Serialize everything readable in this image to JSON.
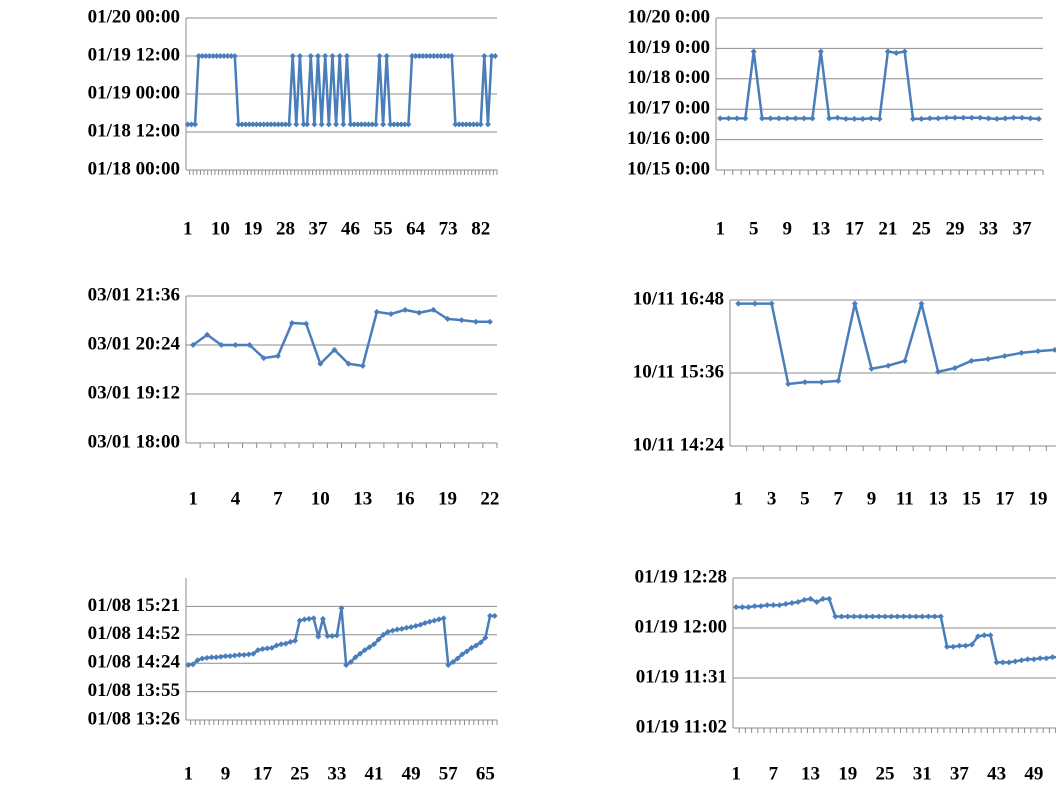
{
  "chart_data": [
    {
      "type": "line",
      "color": "#4a7ebb",
      "grid": true,
      "categories": [
        1,
        null,
        null,
        null,
        null,
        null,
        null,
        null,
        null,
        10,
        null,
        null,
        null,
        null,
        null,
        null,
        null,
        null,
        19,
        null,
        null,
        null,
        null,
        null,
        null,
        null,
        null,
        28,
        null,
        null,
        null,
        null,
        null,
        null,
        null,
        null,
        37,
        null,
        null,
        null,
        null,
        null,
        null,
        null,
        null,
        46,
        null,
        null,
        null,
        null,
        null,
        null,
        null,
        null,
        55,
        null,
        null,
        null,
        null,
        null,
        null,
        null,
        null,
        64,
        null,
        null,
        null,
        null,
        null,
        null,
        null,
        null,
        73,
        null,
        null,
        null,
        null,
        null,
        null,
        null,
        null,
        82,
        null,
        null,
        null,
        null
      ],
      "values": [
        18.6,
        18.6,
        18.6,
        19.5,
        19.5,
        19.5,
        19.5,
        19.5,
        19.5,
        19.5,
        19.5,
        19.5,
        19.5,
        19.5,
        18.6,
        18.6,
        18.6,
        18.6,
        18.6,
        18.6,
        18.6,
        18.6,
        18.6,
        18.6,
        18.6,
        18.6,
        18.6,
        18.6,
        18.6,
        19.5,
        18.6,
        19.5,
        18.6,
        18.6,
        19.5,
        18.6,
        19.5,
        18.6,
        19.5,
        18.6,
        19.5,
        18.6,
        19.5,
        18.6,
        19.5,
        18.6,
        18.6,
        18.6,
        18.6,
        18.6,
        18.6,
        18.6,
        18.6,
        19.5,
        18.6,
        19.5,
        18.6,
        18.6,
        18.6,
        18.6,
        18.6,
        18.6,
        19.5,
        19.5,
        19.5,
        19.5,
        19.5,
        19.5,
        19.5,
        19.5,
        19.5,
        19.5,
        19.5,
        19.5,
        18.6,
        18.6,
        18.6,
        18.6,
        18.6,
        18.6,
        18.6,
        18.6,
        19.5,
        18.6,
        19.5,
        19.5
      ],
      "ylim": [
        18,
        20
      ],
      "yticks": [
        {
          "value": 18,
          "label": "01/18 00:00"
        },
        {
          "value": 18.5,
          "label": "01/18 12:00"
        },
        {
          "value": 19,
          "label": "01/19 00:00"
        },
        {
          "value": 19.5,
          "label": "01/19 12:00"
        },
        {
          "value": 20,
          "label": "01/20 00:00"
        }
      ]
    },
    {
      "type": "line",
      "color": "#4a7ebb",
      "grid": true,
      "categories": [
        1,
        null,
        null,
        null,
        5,
        null,
        null,
        null,
        9,
        null,
        null,
        null,
        13,
        null,
        null,
        null,
        17,
        null,
        null,
        null,
        21,
        null,
        null,
        null,
        25,
        null,
        null,
        null,
        29,
        null,
        null,
        null,
        33,
        null,
        null,
        null,
        37,
        null,
        null
      ],
      "values": [
        16.7,
        16.7,
        16.7,
        16.7,
        18.9,
        16.7,
        16.7,
        16.7,
        16.7,
        16.7,
        16.7,
        16.7,
        18.9,
        16.7,
        16.72,
        16.68,
        16.68,
        16.68,
        16.7,
        16.68,
        18.9,
        18.85,
        18.9,
        16.68,
        16.68,
        16.7,
        16.7,
        16.72,
        16.72,
        16.72,
        16.72,
        16.72,
        16.7,
        16.68,
        16.7,
        16.72,
        16.72,
        16.7,
        16.68
      ],
      "ylim": [
        15,
        20
      ],
      "yticks": [
        {
          "value": 15,
          "label": "10/15 0:00"
        },
        {
          "value": 16,
          "label": "10/16 0:00"
        },
        {
          "value": 17,
          "label": "10/17 0:00"
        },
        {
          "value": 18,
          "label": "10/18 0:00"
        },
        {
          "value": 19,
          "label": "10/19 0:00"
        },
        {
          "value": 20,
          "label": "10/20 0:00"
        }
      ]
    },
    {
      "type": "line",
      "color": "#4a7ebb",
      "grid": true,
      "categories": [
        1,
        null,
        null,
        4,
        null,
        null,
        7,
        null,
        null,
        10,
        null,
        null,
        13,
        null,
        null,
        16,
        null,
        null,
        19,
        null,
        null,
        22
      ],
      "values": [
        20.4,
        20.65,
        20.4,
        20.4,
        20.4,
        20.08,
        20.13,
        20.94,
        20.92,
        19.94,
        20.28,
        19.94,
        19.89,
        21.21,
        21.16,
        21.26,
        21.19,
        21.26,
        21.04,
        21.01,
        20.97,
        20.97
      ],
      "ylim": [
        18,
        21.6
      ],
      "yticks": [
        {
          "value": 18,
          "label": "03/01 18:00"
        },
        {
          "value": 19.2,
          "label": "03/01 19:12"
        },
        {
          "value": 20.4,
          "label": "03/01 20:24"
        },
        {
          "value": 21.6,
          "label": "03/01 21:36"
        }
      ]
    },
    {
      "type": "line",
      "color": "#4a7ebb",
      "grid": true,
      "categories": [
        1,
        null,
        3,
        null,
        5,
        null,
        7,
        null,
        9,
        null,
        11,
        null,
        13,
        null,
        15,
        null,
        17,
        null,
        19,
        null
      ],
      "values": [
        16.74,
        16.74,
        16.74,
        15.42,
        15.45,
        15.45,
        15.47,
        16.74,
        15.67,
        15.72,
        15.8,
        16.74,
        15.62,
        15.68,
        15.8,
        15.83,
        15.88,
        15.93,
        15.96,
        15.98
      ],
      "ylim": [
        14.4,
        16.8
      ],
      "yticks": [
        {
          "value": 14.4,
          "label": "10/11 14:24"
        },
        {
          "value": 15.6,
          "label": "10/11 15:36"
        },
        {
          "value": 16.8,
          "label": "10/11 16:48"
        }
      ]
    },
    {
      "type": "line",
      "color": "#4a7ebb",
      "grid": true,
      "categories": [
        1,
        null,
        null,
        null,
        null,
        null,
        null,
        null,
        9,
        null,
        null,
        null,
        null,
        null,
        null,
        null,
        17,
        null,
        null,
        null,
        null,
        null,
        null,
        null,
        25,
        null,
        null,
        null,
        null,
        null,
        null,
        null,
        33,
        null,
        null,
        null,
        null,
        null,
        null,
        null,
        41,
        null,
        null,
        null,
        null,
        null,
        null,
        null,
        49,
        null,
        null,
        null,
        null,
        null,
        null,
        null,
        57,
        null,
        null,
        null,
        null,
        null,
        null,
        null,
        65,
        null,
        null
      ],
      "values": [
        14.37,
        14.38,
        14.45,
        14.48,
        14.49,
        14.5,
        14.5,
        14.51,
        14.52,
        14.52,
        14.53,
        14.54,
        14.54,
        14.55,
        14.56,
        14.62,
        14.64,
        14.65,
        14.66,
        14.7,
        14.72,
        14.73,
        14.76,
        14.78,
        15.12,
        15.14,
        15.15,
        15.16,
        14.85,
        15.15,
        14.86,
        14.86,
        14.87,
        15.33,
        14.37,
        14.42,
        14.5,
        14.56,
        14.62,
        14.67,
        14.72,
        14.8,
        14.88,
        14.93,
        14.95,
        14.97,
        14.98,
        15.0,
        15.01,
        15.03,
        15.05,
        15.08,
        15.1,
        15.12,
        15.14,
        15.16,
        14.37,
        14.42,
        14.48,
        14.55,
        14.6,
        14.66,
        14.7,
        14.75,
        14.83,
        15.2,
        15.2
      ],
      "ylim": [
        13.44,
        15.84
      ],
      "yticks": [
        {
          "value": 13.44,
          "label": "01/08 13:26"
        },
        {
          "value": 13.92,
          "label": "01/08 13:55"
        },
        {
          "value": 14.4,
          "label": "01/08 14:24"
        },
        {
          "value": 14.88,
          "label": "01/08 14:52"
        },
        {
          "value": 15.36,
          "label": "01/08 15:21"
        }
      ]
    },
    {
      "type": "line",
      "color": "#4a7ebb",
      "grid": true,
      "categories": [
        1,
        null,
        null,
        null,
        null,
        null,
        7,
        null,
        null,
        null,
        null,
        null,
        13,
        null,
        null,
        null,
        null,
        null,
        19,
        null,
        null,
        null,
        null,
        null,
        25,
        null,
        null,
        null,
        null,
        null,
        31,
        null,
        null,
        null,
        null,
        null,
        37,
        null,
        null,
        null,
        null,
        null,
        43,
        null,
        null,
        null,
        null,
        null,
        49,
        null,
        null,
        null,
        null,
        null
      ],
      "values": [
        12.2,
        12.2,
        12.2,
        12.21,
        12.21,
        12.22,
        12.22,
        12.22,
        12.23,
        12.24,
        12.25,
        12.27,
        12.28,
        12.25,
        12.28,
        12.28,
        12.11,
        12.11,
        12.11,
        12.11,
        12.11,
        12.11,
        12.11,
        12.11,
        12.11,
        12.11,
        12.11,
        12.11,
        12.11,
        12.11,
        12.11,
        12.11,
        12.11,
        12.11,
        11.82,
        11.82,
        11.83,
        11.83,
        11.84,
        11.92,
        11.93,
        11.93,
        11.67,
        11.67,
        11.67,
        11.68,
        11.69,
        11.7,
        11.7,
        11.71,
        11.71,
        11.72,
        11.72,
        11.73
      ],
      "ylim": [
        11.04,
        12.48
      ],
      "yticks": [
        {
          "value": 11.04,
          "label": "01/19 11:02"
        },
        {
          "value": 11.52,
          "label": "01/19 11:31"
        },
        {
          "value": 12.0,
          "label": "01/19 12:00"
        },
        {
          "value": 12.48,
          "label": "01/19 12:28"
        }
      ]
    }
  ]
}
